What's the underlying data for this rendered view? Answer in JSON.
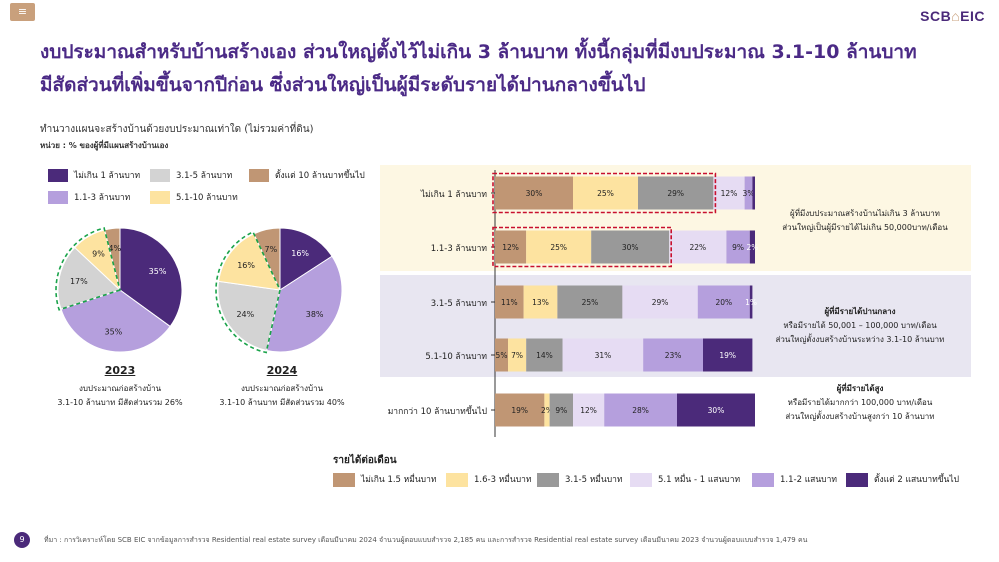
{
  "header": {
    "menu_icon": "menu-icon",
    "logo_text": "SCB",
    "logo_mark": "⌂",
    "logo_suffix": "EIC",
    "headline_line1": "งบประมาณสำหรับบ้านสร้างเอง ส่วนใหญ่ตั้งไว้ไม่เกิน 3 ล้านบาท ทั้งนี้กลุ่มที่มีงบประมาณ 3.1-10 ล้านบาท",
    "headline_line2": "มีสัดส่วนที่เพิ่มขึ้นจากปีก่อน ซึ่งส่วนใหญ่เป็นผู้มีระดับรายได้ปานกลางขึ้นไป"
  },
  "subtitle": "ทำนวางแผนจะสร้างบ้านด้วยงบประมาณเท่าใด (ไม่รวมค่าที่ดิน)",
  "unit": "หน่วย : % ของผู้ที่มีแผนสร้างบ้านเอง",
  "colors": {
    "budget": [
      "#4b2a7a",
      "#b59fdd",
      "#d3d3d3",
      "#fde3a0",
      "#c09674"
    ],
    "income": [
      "#c09674",
      "#fde3a0",
      "#999999",
      "#e6dcf3",
      "#b59fdd",
      "#4b2a7a"
    ],
    "band_yellow": "#fdf7e3",
    "band_lavender": "#e8e6f1",
    "dash_red": "#c8102e",
    "dash_green": "#1aa34a",
    "headline": "#4b2a86"
  },
  "budget_legend": [
    "ไม่เกิน 1 ล้านบาท",
    "1.1-3 ล้านบาท",
    "3.1-5 ล้านบาท",
    "5.1-10 ล้านบาท",
    "ตั้งแต่ 10 ล้านบาทขึ้นไป"
  ],
  "pies": [
    {
      "year": "2023",
      "caption1": "งบประมาณก่อสร้างบ้าน",
      "caption2": "3.1-10 ล้านบาท มีสัดส่วนรวม 26%"
    },
    {
      "year": "2024",
      "caption1": "งบประมาณก่อสร้างบ้าน",
      "caption2": "3.1-10 ล้านบาท มีสัดส่วนรวม 40%"
    }
  ],
  "income_legend_title": "รายได้ต่อเดือน",
  "income_legend": [
    "ไม่เกิน 1.5 หมื่นบาท",
    "1.6-3 หมื่นบาท",
    "3.1-5 หมื่นบาท",
    "5.1 หมื่น - 1 แสนบาท",
    "1.1-2 แสนบาท",
    "ตั้งแต่ 2 แสนบาทขึ้นไป"
  ],
  "annotations": [
    {
      "line1": "ผู้ที่มีงบประมาณสร้างบ้านไม่เกิน 3 ล้านบาท",
      "line2": "ส่วนใหญ่เป็นผู้มีรายได้ไม่เกิน 50,000บาท/เดือน",
      "line3": ""
    },
    {
      "line1": "ผู้ที่มีรายได้ปานกลาง",
      "line2": "หรือมีรายได้ 50,001 – 100,000 บาท/เดือน",
      "line3": "ส่วนใหญ่ตั้งงบสร้างบ้านระหว่าง 3.1-10 ล้านบาท"
    },
    {
      "line1": "ผู้ที่มีรายได้สูง",
      "line2": "หรือมีรายได้มากกว่า 100,000 บาท/เดือน",
      "line3": "ส่วนใหญ่ตั้งงบสร้างบ้านสูงกว่า 10 ล้านบาท"
    }
  ],
  "footer": {
    "page_number": "9",
    "source": "ที่มา : การวิเคราะห์โดย SCB EIC จากข้อมูลการสำรวจ Residential real estate survey เดือนมีนาคม 2024 จำนวนผู้ตอบแบบสำรวจ 2,185 คน และการสำรวจ Residential real estate survey เดือนมีนาคม 2023 จำนวนผู้ตอบแบบสำรวจ 1,479 คน"
  },
  "chart_data": [
    {
      "type": "pie",
      "title": "2023",
      "categories": [
        "ไม่เกิน 1 ล้านบาท",
        "1.1-3 ล้านบาท",
        "3.1-5 ล้านบาท",
        "5.1-10 ล้านบาท",
        "ตั้งแต่ 10 ล้านบาทขึ้นไป"
      ],
      "values": [
        35,
        35,
        17,
        9,
        4
      ],
      "labels": [
        "35%",
        "35%",
        "17%",
        "9%",
        "4%"
      ]
    },
    {
      "type": "pie",
      "title": "2024",
      "categories": [
        "ไม่เกิน 1 ล้านบาท",
        "1.1-3 ล้านบาท",
        "3.1-5 ล้านบาท",
        "5.1-10 ล้านบาท",
        "ตั้งแต่ 10 ล้านบาทขึ้นไป"
      ],
      "values": [
        16,
        38,
        24,
        16,
        7
      ],
      "labels": [
        "16%",
        "38%",
        "24%",
        "16%",
        "7%"
      ]
    },
    {
      "type": "bar",
      "stacked": true,
      "orientation": "horizontal",
      "categories": [
        "ไม่เกิน 1 ล้านบาท",
        "1.1-3 ล้านบาท",
        "3.1-5 ล้านบาท",
        "5.1-10 ล้านบาท",
        "มากกว่า 10 ล้านบาทขึ้นไป"
      ],
      "series": [
        {
          "name": "ไม่เกิน 1.5 หมื่นบาท",
          "values": [
            30,
            12,
            11,
            5,
            19
          ]
        },
        {
          "name": "1.6-3 หมื่นบาท",
          "values": [
            25,
            25,
            13,
            7,
            2
          ]
        },
        {
          "name": "3.1-5 หมื่นบาท",
          "values": [
            29,
            30,
            25,
            14,
            9
          ]
        },
        {
          "name": "5.1 หมื่น - 1 แสนบาท",
          "values": [
            12,
            22,
            29,
            31,
            12
          ]
        },
        {
          "name": "1.1-2 แสนบาท",
          "values": [
            3,
            9,
            20,
            23,
            28
          ]
        },
        {
          "name": "ตั้งแต่ 2 แสนบาทขึ้นไป",
          "values": [
            1,
            2,
            1,
            19,
            30
          ]
        }
      ],
      "labels": [
        [
          "30%",
          "25%",
          "29%",
          "12%",
          "3%",
          ""
        ],
        [
          "12%",
          "25%",
          "30%",
          "22%",
          "9%",
          "2%"
        ],
        [
          "11%",
          "13%",
          "25%",
          "29%",
          "20%",
          "1%"
        ],
        [
          "5%",
          "7%",
          "14%",
          "31%",
          "23%",
          "19%"
        ],
        [
          "19%",
          "2%",
          "9%",
          "12%",
          "28%",
          "30%"
        ]
      ],
      "xlim": [
        0,
        100
      ],
      "legend": "bottom"
    }
  ]
}
